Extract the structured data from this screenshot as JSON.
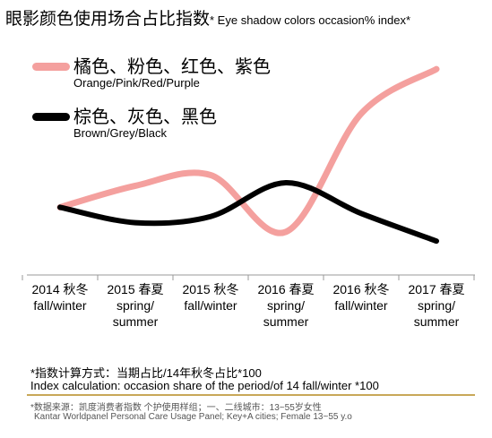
{
  "title": {
    "zh": "眼影颜色使用场合占比指数",
    "en": "* Eye shadow colors occasion% index*"
  },
  "chart_data": {
    "type": "line",
    "categories": [
      "2014 秋冬\nfall/winter",
      "2015 春夏\nspring/\nsummer",
      "2015 秋冬\nfall/winter",
      "2016 春夏\nspring/\nsummer",
      "2016 秋冬\nfall/winter",
      "2017 春夏\nspring/\nsummer"
    ],
    "series": [
      {
        "name": "橘色、粉色、红色、紫色",
        "name_en": "Orange/Pink/Red/Purple",
        "color": "#f4a09e",
        "values": [
          100,
          114,
          121,
          84,
          161,
          190
        ]
      },
      {
        "name": "棕色、灰色、黑色",
        "name_en": "Brown/Grey/Black",
        "color": "#000000",
        "values": [
          100,
          90,
          94,
          116,
          96,
          78
        ]
      }
    ],
    "ylim": [
      60,
      200
    ],
    "grid": false,
    "legend": "top-left"
  },
  "notes": {
    "line1": "*指数计算方式：当期占比/14年秋冬占比*100",
    "line2": "Index calculation: occasion share of the period/of 14 fall/winter *100"
  },
  "source": {
    "line1": "*数据来源：凯度消费者指数 个护使用样组；一、二线城市：13~55岁女性",
    "line2": "Kantar Worldpanel Personal Care Usage Panel; Key+A cities; Female 13~55 y.o"
  }
}
